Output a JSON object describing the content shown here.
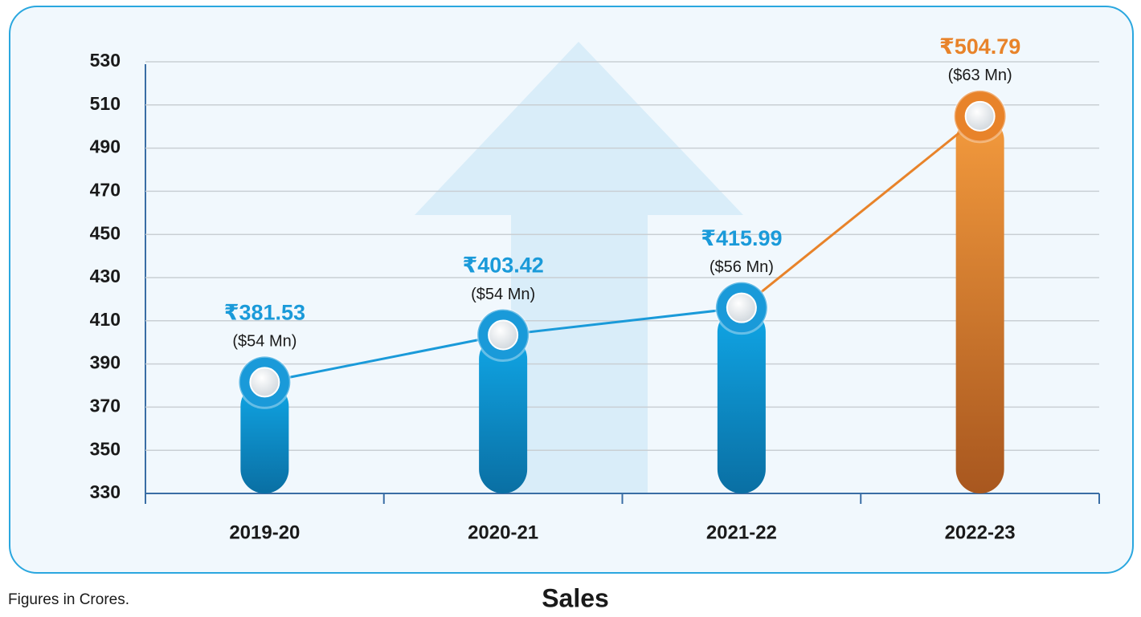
{
  "chart_data": {
    "type": "bar",
    "title": "Sales",
    "note": "Figures in Crores.",
    "categories": [
      "2019-20",
      "2020-21",
      "2021-22",
      "2022-23"
    ],
    "values": [
      381.53,
      403.42,
      415.99,
      504.79
    ],
    "value_labels": [
      "₹381.53",
      "₹403.42",
      "₹415.99",
      "₹504.79"
    ],
    "usd_labels": [
      "($54 Mn)",
      "($54 Mn)",
      "($56 Mn)",
      "($63 Mn)"
    ],
    "colors": [
      "#1a9ad9",
      "#1a9ad9",
      "#1a9ad9",
      "#e8832a"
    ],
    "ylim": [
      330,
      530
    ],
    "yticks": [
      330,
      350,
      370,
      390,
      410,
      430,
      450,
      470,
      490,
      510,
      530
    ],
    "grid": true
  }
}
